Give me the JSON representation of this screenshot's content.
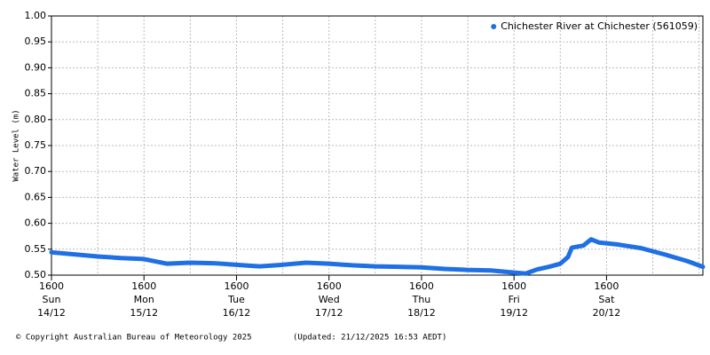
{
  "chart_data": {
    "type": "line",
    "y_label": "Water Level (m)",
    "footer_left": "© Copyright Australian Bureau of Meteorology 2025",
    "footer_right": "(Updated: 21/12/2025 16:53 AEDT)",
    "ylim": [
      0.5,
      1.0
    ],
    "yticks": [
      {
        "value": 0.5,
        "label": "0.50"
      },
      0.55,
      {
        "value": 0.6,
        "label": "0.60"
      },
      0.65,
      {
        "value": 0.7,
        "label": "0.70"
      },
      0.75,
      {
        "value": 0.8,
        "label": "0.80"
      },
      0.85,
      {
        "value": 0.9,
        "label": "0.90"
      },
      0.95,
      {
        "value": 1.0,
        "label": "1.00"
      }
    ],
    "xlim": [
      "14/12 16:00",
      "21/12 17:00"
    ],
    "xticks": [
      {
        "value": "14/12 16:00",
        "label": [
          "1600",
          "Sun",
          "14/12"
        ]
      },
      {
        "value": "15/12 16:00",
        "label": [
          "1600",
          "Mon",
          "15/12"
        ]
      },
      {
        "value": "16/12 16:00",
        "label": [
          "1600",
          "Tue",
          "16/12"
        ]
      },
      {
        "value": "17/12 16:00",
        "label": [
          "1600",
          "Wed",
          "17/12"
        ]
      },
      {
        "value": "18/12 16:00",
        "label": [
          "1600",
          "Thu",
          "18/12"
        ]
      },
      {
        "value": "19/12 16:00",
        "label": [
          "1600",
          "Fri",
          "19/12"
        ]
      },
      {
        "value": "20/12 16:00",
        "label": [
          "1600",
          "Sat",
          "20/12"
        ]
      }
    ],
    "xgrid": [
      "15/12 04:00",
      "15/12 16:00",
      "16/12 04:00",
      "16/12 16:00",
      "17/12 04:00",
      "17/12 16:00",
      "18/12 04:00",
      "18/12 16:00",
      "19/12 04:00",
      "19/12 16:00",
      "20/12 04:00",
      "20/12 16:00",
      "21/12 04:00",
      "21/12 16:00"
    ],
    "grid": true,
    "legend": "upper right",
    "x": [
      "14/12 16:00",
      "14/12 22:00",
      "15/12 04:00",
      "15/12 10:00",
      "15/12 16:00",
      "15/12 22:00",
      "16/12 04:00",
      "16/12 10:00",
      "16/12 16:00",
      "16/12 22:00",
      "17/12 04:00",
      "17/12 10:00",
      "17/12 16:00",
      "17/12 22:00",
      "18/12 04:00",
      "18/12 10:00",
      "18/12 16:00",
      "18/12 22:00",
      "19/12 04:00",
      "19/12 10:00",
      "19/12 16:00",
      "19/12 19:00",
      "19/12 22:00",
      "20/12 01:00",
      "20/12 04:00",
      "20/12 06:00",
      "20/12 07:00",
      "20/12 10:00",
      "20/12 12:00",
      "20/12 14:00",
      "20/12 19:00",
      "21/12 01:00",
      "21/12 07:00",
      "21/12 13:00",
      "21/12 17:00"
    ],
    "series": [
      {
        "name": "Chichester River at Chichester (561059)",
        "color": "#1f6fe5",
        "values": [
          0.544,
          0.54,
          0.536,
          0.533,
          0.531,
          0.522,
          0.524,
          0.523,
          0.52,
          0.517,
          0.52,
          0.524,
          0.522,
          0.519,
          0.517,
          0.516,
          0.515,
          0.512,
          0.51,
          0.509,
          0.505,
          0.503,
          0.511,
          0.516,
          0.522,
          0.535,
          0.553,
          0.557,
          0.569,
          0.563,
          0.559,
          0.552,
          0.54,
          0.527,
          0.516
        ]
      }
    ]
  }
}
